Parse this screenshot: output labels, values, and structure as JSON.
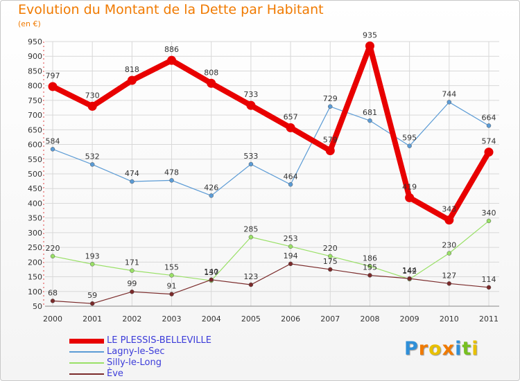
{
  "header": {
    "title": "Evolution du Montant de la Dette par Habitant",
    "unit": "(en €)"
  },
  "logo": {
    "text": "Proxiti"
  },
  "chart_data": {
    "type": "line",
    "title": "Evolution du Montant de la Dette par Habitant",
    "subtitle": "(en €)",
    "xlabel": "",
    "ylabel": "",
    "x": [
      "2000",
      "2001",
      "2002",
      "2003",
      "2004",
      "2005",
      "2006",
      "2007",
      "2008",
      "2009",
      "2010",
      "2011"
    ],
    "y_ticks": [
      50,
      100,
      150,
      200,
      250,
      300,
      350,
      400,
      450,
      500,
      550,
      600,
      650,
      700,
      750,
      800,
      850,
      900,
      950
    ],
    "ylim": [
      50,
      950
    ],
    "grid": true,
    "legend": "bottom-left",
    "series": [
      {
        "name": "LE PLESSIS-BELLEVILLE",
        "color": "#e80000",
        "values": [
          797,
          730,
          818,
          886,
          808,
          733,
          657,
          579,
          935,
          419,
          343,
          574
        ]
      },
      {
        "name": "Lagny-le-Sec",
        "color": "#5b9bd5",
        "values": [
          584,
          532,
          474,
          478,
          426,
          533,
          464,
          729,
          681,
          595,
          744,
          664
        ]
      },
      {
        "name": "Silly-le-Long",
        "color": "#99e066",
        "values": [
          220,
          193,
          171,
          155,
          137,
          285,
          253,
          220,
          186,
          142,
          230,
          340
        ]
      },
      {
        "name": "Ève",
        "color": "#7a2a2a",
        "values": [
          68,
          59,
          99,
          91,
          140,
          123,
          194,
          175,
          155,
          144,
          127,
          114
        ]
      }
    ]
  }
}
